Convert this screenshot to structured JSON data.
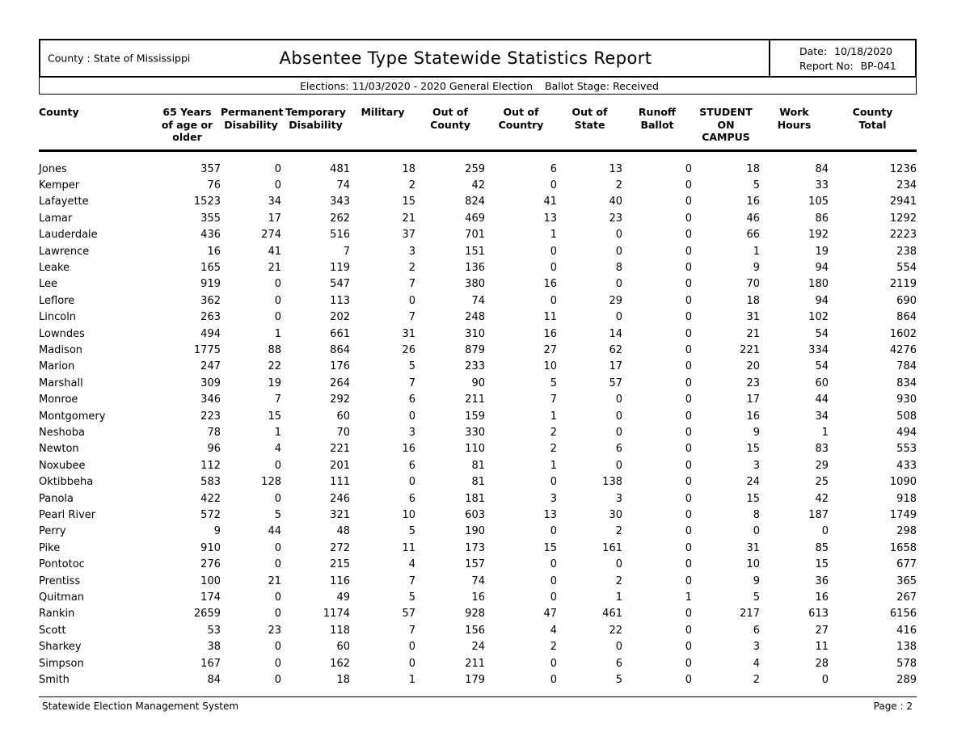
{
  "header": {
    "county_label": "County :",
    "county_value": "State of Mississippi",
    "title": "Absentee Type Statewide Statistics Report",
    "date_label": "Date:",
    "date_value": "10/18/2020",
    "report_no_label": "Report No:",
    "report_no_value": "BP-041",
    "elections_label": "Elections:",
    "elections_value": "11/03/2020 - 2020 General Election",
    "ballot_stage_label": "Ballot Stage:",
    "ballot_stage_value": "Received"
  },
  "table": {
    "columns": [
      "County",
      "65 Years\nof age or\nolder",
      "Permanent\nDisability",
      "Temporary\nDisability",
      "Military",
      "Out of\nCounty",
      "Out of\nCountry",
      "Out of\nState",
      "Runoff\nBallot",
      "STUDENT\nON\nCAMPUS",
      "Work\nHours",
      "County\nTotal"
    ],
    "rows": [
      [
        "Jones",
        357,
        0,
        481,
        18,
        259,
        6,
        13,
        0,
        18,
        84,
        1236
      ],
      [
        "Kemper",
        76,
        0,
        74,
        2,
        42,
        0,
        2,
        0,
        5,
        33,
        234
      ],
      [
        "Lafayette",
        1523,
        34,
        343,
        15,
        824,
        41,
        40,
        0,
        16,
        105,
        2941
      ],
      [
        "Lamar",
        355,
        17,
        262,
        21,
        469,
        13,
        23,
        0,
        46,
        86,
        1292
      ],
      [
        "Lauderdale",
        436,
        274,
        516,
        37,
        701,
        1,
        0,
        0,
        66,
        192,
        2223
      ],
      [
        "Lawrence",
        16,
        41,
        7,
        3,
        151,
        0,
        0,
        0,
        1,
        19,
        238
      ],
      [
        "Leake",
        165,
        21,
        119,
        2,
        136,
        0,
        8,
        0,
        9,
        94,
        554
      ],
      [
        "Lee",
        919,
        0,
        547,
        7,
        380,
        16,
        0,
        0,
        70,
        180,
        2119
      ],
      [
        "Leflore",
        362,
        0,
        113,
        0,
        74,
        0,
        29,
        0,
        18,
        94,
        690
      ],
      [
        "Lincoln",
        263,
        0,
        202,
        7,
        248,
        11,
        0,
        0,
        31,
        102,
        864
      ],
      [
        "Lowndes",
        494,
        1,
        661,
        31,
        310,
        16,
        14,
        0,
        21,
        54,
        1602
      ],
      [
        "Madison",
        1775,
        88,
        864,
        26,
        879,
        27,
        62,
        0,
        221,
        334,
        4276
      ],
      [
        "Marion",
        247,
        22,
        176,
        5,
        233,
        10,
        17,
        0,
        20,
        54,
        784
      ],
      [
        "Marshall",
        309,
        19,
        264,
        7,
        90,
        5,
        57,
        0,
        23,
        60,
        834
      ],
      [
        "Monroe",
        346,
        7,
        292,
        6,
        211,
        7,
        0,
        0,
        17,
        44,
        930
      ],
      [
        "Montgomery",
        223,
        15,
        60,
        0,
        159,
        1,
        0,
        0,
        16,
        34,
        508
      ],
      [
        "Neshoba",
        78,
        1,
        70,
        3,
        330,
        2,
        0,
        0,
        9,
        1,
        494
      ],
      [
        "Newton",
        96,
        4,
        221,
        16,
        110,
        2,
        6,
        0,
        15,
        83,
        553
      ],
      [
        "Noxubee",
        112,
        0,
        201,
        6,
        81,
        1,
        0,
        0,
        3,
        29,
        433
      ],
      [
        "Oktibbeha",
        583,
        128,
        111,
        0,
        81,
        0,
        138,
        0,
        24,
        25,
        1090
      ],
      [
        "Panola",
        422,
        0,
        246,
        6,
        181,
        3,
        3,
        0,
        15,
        42,
        918
      ],
      [
        "Pearl River",
        572,
        5,
        321,
        10,
        603,
        13,
        30,
        0,
        8,
        187,
        1749
      ],
      [
        "Perry",
        9,
        44,
        48,
        5,
        190,
        0,
        2,
        0,
        0,
        0,
        298
      ],
      [
        "Pike",
        910,
        0,
        272,
        11,
        173,
        15,
        161,
        0,
        31,
        85,
        1658
      ],
      [
        "Pontotoc",
        276,
        0,
        215,
        4,
        157,
        0,
        0,
        0,
        10,
        15,
        677
      ],
      [
        "Prentiss",
        100,
        21,
        116,
        7,
        74,
        0,
        2,
        0,
        9,
        36,
        365
      ],
      [
        "Quitman",
        174,
        0,
        49,
        5,
        16,
        0,
        1,
        1,
        5,
        16,
        267
      ],
      [
        "Rankin",
        2659,
        0,
        1174,
        57,
        928,
        47,
        461,
        0,
        217,
        613,
        6156
      ],
      [
        "Scott",
        53,
        23,
        118,
        7,
        156,
        4,
        22,
        0,
        6,
        27,
        416
      ],
      [
        "Sharkey",
        38,
        0,
        60,
        0,
        24,
        2,
        0,
        0,
        3,
        11,
        138
      ],
      [
        "Simpson",
        167,
        0,
        162,
        0,
        211,
        0,
        6,
        0,
        4,
        28,
        578
      ],
      [
        "Smith",
        84,
        0,
        18,
        1,
        179,
        0,
        5,
        0,
        2,
        0,
        289
      ]
    ]
  },
  "footer": {
    "left": "Statewide Election Management System",
    "right": "Page : 2"
  }
}
